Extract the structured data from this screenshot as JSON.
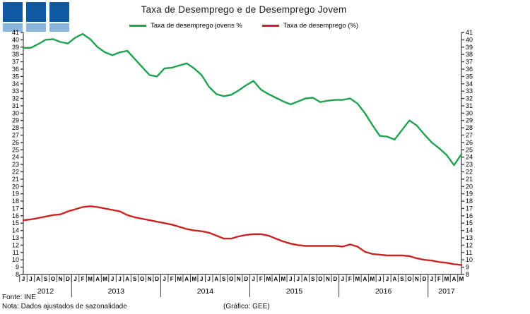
{
  "title": "Taxa de Desemprego e de Desemprego Jovem",
  "logo": {
    "square_color": "#0f5aa0",
    "bar_color": "#8ab5dc",
    "squares": 3
  },
  "legend": [
    {
      "label": "Taxa de desemprego jovens %",
      "color": "#1fa24f"
    },
    {
      "label": "Taxa de desemprego (%)",
      "color": "#cc2222"
    }
  ],
  "footer": {
    "fonte": "Fonte: INE",
    "nota": "Nota: Dados ajustados de sazonalidade",
    "grafico": "(Gráfico: GEE)"
  },
  "chart_data": {
    "type": "line",
    "title": "Taxa de Desemprego e de Desemprego Jovem",
    "xlabel": "",
    "ylabel": "",
    "ylim": [
      8,
      41
    ],
    "y_tick_step": 1,
    "grid": false,
    "legend_position": "top-center",
    "axis_color": "#3c3c3c",
    "x_labels": [
      "J",
      "J",
      "A",
      "S",
      "O",
      "N",
      "D",
      "J",
      "F",
      "M",
      "A",
      "M",
      "J",
      "J",
      "A",
      "S",
      "O",
      "N",
      "D",
      "J",
      "F",
      "M",
      "A",
      "M",
      "J",
      "J",
      "A",
      "S",
      "O",
      "N",
      "D",
      "J",
      "F",
      "M",
      "A",
      "M",
      "J",
      "J",
      "A",
      "S",
      "O",
      "N",
      "D",
      "J",
      "F",
      "M",
      "A",
      "M",
      "J",
      "J",
      "A",
      "S",
      "O",
      "N",
      "D",
      "J",
      "F",
      "M",
      "A",
      "M"
    ],
    "years": [
      {
        "label": "2012",
        "months": 7
      },
      {
        "label": "2013",
        "months": 12
      },
      {
        "label": "2014",
        "months": 12
      },
      {
        "label": "2015",
        "months": 12
      },
      {
        "label": "2016",
        "months": 12
      },
      {
        "label": "2017",
        "months": 5
      }
    ],
    "series": [
      {
        "name": "Taxa de desemprego jovens %",
        "color": "#1fa24f",
        "values": [
          38.9,
          38.9,
          39.4,
          40.0,
          40.1,
          39.7,
          39.5,
          40.3,
          40.8,
          40.1,
          39.0,
          38.3,
          37.9,
          38.3,
          38.5,
          37.4,
          36.3,
          35.2,
          35.0,
          36.1,
          36.2,
          36.5,
          36.8,
          36.1,
          35.2,
          33.6,
          32.6,
          32.3,
          32.5,
          33.1,
          33.8,
          34.4,
          33.2,
          32.6,
          32.1,
          31.6,
          31.2,
          31.6,
          32.0,
          32.1,
          31.5,
          31.7,
          31.8,
          31.8,
          32.0,
          31.3,
          30.0,
          28.4,
          26.9,
          26.8,
          26.4,
          27.7,
          29.0,
          28.3,
          27.1,
          26.0,
          25.2,
          24.3,
          22.9,
          24.4
        ]
      },
      {
        "name": "Taxa de desemprego (%)",
        "color": "#cc2222",
        "values": [
          15.4,
          15.5,
          15.7,
          15.9,
          16.1,
          16.2,
          16.6,
          16.9,
          17.2,
          17.3,
          17.2,
          17.0,
          16.8,
          16.6,
          16.1,
          15.8,
          15.6,
          15.4,
          15.2,
          15.0,
          14.8,
          14.5,
          14.2,
          14.0,
          13.9,
          13.7,
          13.3,
          12.9,
          12.9,
          13.2,
          13.4,
          13.5,
          13.5,
          13.3,
          12.9,
          12.5,
          12.2,
          12.0,
          11.9,
          11.9,
          11.9,
          11.9,
          11.9,
          11.8,
          12.1,
          11.8,
          11.1,
          10.8,
          10.7,
          10.6,
          10.6,
          10.6,
          10.5,
          10.2,
          10.0,
          9.9,
          9.7,
          9.6,
          9.4,
          9.3
        ]
      }
    ]
  }
}
